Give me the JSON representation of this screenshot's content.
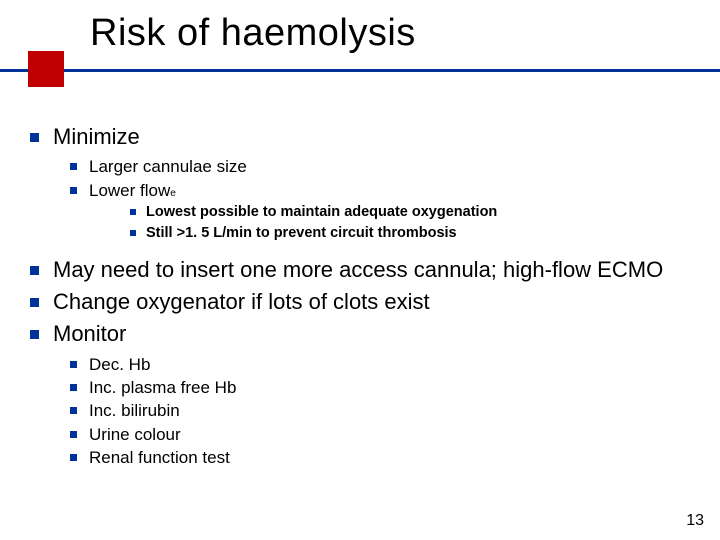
{
  "colors": {
    "underline": "#003399",
    "accent": "#c00000",
    "bullet": "#003399",
    "background": "#ffffff",
    "text": "#000000"
  },
  "title": "Risk of haemolysis",
  "page_number": "13",
  "bullets": {
    "l1": [
      "Minimize",
      "May need to insert one more access cannula; high-flow ECMO",
      "Change oxygenator if lots of clots exist",
      "Monitor"
    ],
    "minimize_sub": [
      "Larger cannulae size",
      "Lower flow"
    ],
    "flow_sub": [
      "Lowest possible to maintain adequate oxygenation",
      "Still >1. 5 L/min to prevent circuit thrombosis"
    ],
    "monitor_sub": [
      "Dec. Hb",
      "Inc. plasma free Hb",
      "Inc. bilirubin",
      "Urine colour",
      "Renal function test"
    ]
  }
}
